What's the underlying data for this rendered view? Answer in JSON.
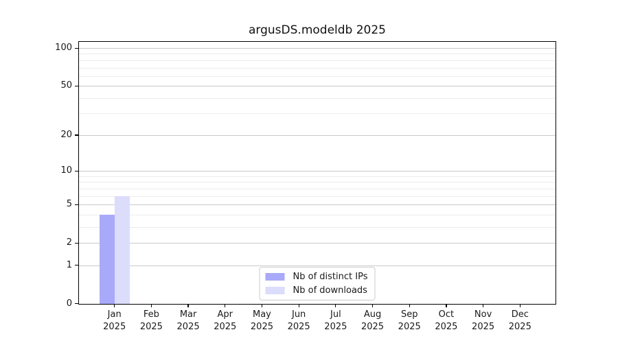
{
  "chart_data": {
    "type": "bar",
    "title": "argusDS.modeldb 2025",
    "scale": "log1p",
    "categories": [
      "Jan",
      "Feb",
      "Mar",
      "Apr",
      "May",
      "Jun",
      "Jul",
      "Aug",
      "Sep",
      "Oct",
      "Nov",
      "Dec"
    ],
    "category_year": "2025",
    "series": [
      {
        "name": "Nb of distinct IPs",
        "color": "#a9a9f9",
        "values": [
          4,
          0,
          0,
          0,
          0,
          0,
          0,
          0,
          0,
          0,
          0,
          0
        ]
      },
      {
        "name": "Nb of downloads",
        "color": "#dcdcfb",
        "values": [
          6,
          0,
          0,
          0,
          0,
          0,
          0,
          0,
          0,
          0,
          0,
          0
        ]
      }
    ],
    "y_ticks": [
      0,
      1,
      2,
      5,
      10,
      20,
      50,
      100
    ],
    "y_minor_gridlines": [
      3,
      4,
      6,
      7,
      8,
      9,
      30,
      40,
      60,
      70,
      80,
      90
    ],
    "ylim": [
      0,
      112
    ],
    "xlabel": "",
    "ylabel": "",
    "grid": "horizontal",
    "legend_position": "lower center",
    "colors": {
      "bar_distinct_ips": "#a9a9f9",
      "bar_downloads": "#dcdcfb",
      "major_grid": "#c9c9c9",
      "minor_grid": "#ececec",
      "axis": "#000000",
      "text": "#191919",
      "legend_border": "#cccccc"
    }
  }
}
